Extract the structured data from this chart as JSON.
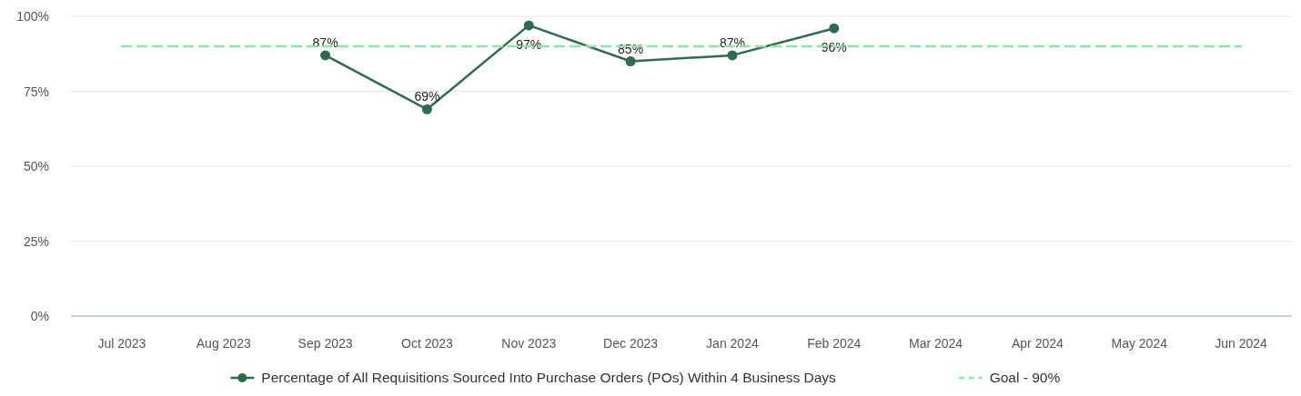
{
  "chart_data": {
    "type": "line",
    "categories": [
      "Jul 2023",
      "Aug 2023",
      "Sep 2023",
      "Oct 2023",
      "Nov 2023",
      "Dec 2023",
      "Jan 2024",
      "Feb 2024",
      "Mar 2024",
      "Apr 2024",
      "May 2024",
      "Jun 2024"
    ],
    "series": [
      {
        "name": "Percentage of All Requisitions Sourced Into Purchase Orders (POs) Within 4 Business Days",
        "color": "#2e6b4f",
        "values": [
          null,
          null,
          87,
          69,
          97,
          85,
          87,
          96,
          null,
          null,
          null,
          null
        ],
        "marker": "circle",
        "line_style": "solid",
        "value_labels": [
          null,
          null,
          "87%",
          "69%",
          "97%",
          "85%",
          "87%",
          "96%",
          null,
          null,
          null,
          null
        ]
      },
      {
        "name": "Goal - 90%",
        "color": "#8fe3a8",
        "values": [
          90,
          90,
          90,
          90,
          90,
          90,
          90,
          90,
          90,
          90,
          90,
          90
        ],
        "marker": "none",
        "line_style": "dashed"
      }
    ],
    "ylim": [
      0,
      100
    ],
    "yticks": [
      {
        "value": 0,
        "label": "0%"
      },
      {
        "value": 25,
        "label": "25%"
      },
      {
        "value": 50,
        "label": "50%"
      },
      {
        "value": 75,
        "label": "75%"
      },
      {
        "value": 100,
        "label": "100%"
      }
    ],
    "grid": "y",
    "legend": "bottom"
  }
}
